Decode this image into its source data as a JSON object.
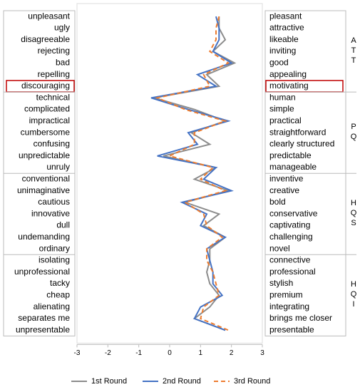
{
  "chart_data": {
    "type": "profile",
    "groups": [
      {
        "label": "ATT",
        "items": [
          {
            "left": "unpleasant",
            "right": "pleasant"
          },
          {
            "left": "ugly",
            "right": "attractive"
          },
          {
            "left": "disagreeable",
            "right": "likeable"
          },
          {
            "left": "rejecting",
            "right": "inviting"
          },
          {
            "left": "bad",
            "right": "good"
          },
          {
            "left": "repelling",
            "right": "appealing"
          },
          {
            "left": "discouraging",
            "right": "motivating",
            "highlight": true
          }
        ]
      },
      {
        "label": "PQ",
        "items": [
          {
            "left": "technical",
            "right": "human"
          },
          {
            "left": "complicated",
            "right": "simple"
          },
          {
            "left": "impractical",
            "right": "practical"
          },
          {
            "left": "cumbersome",
            "right": "straightforward"
          },
          {
            "left": "confusing",
            "right": "clearly structured"
          },
          {
            "left": "unpredictable",
            "right": "predictable"
          },
          {
            "left": "unruly",
            "right": "manageable"
          }
        ]
      },
      {
        "label": "HQS",
        "items": [
          {
            "left": "conventional",
            "right": "inventive"
          },
          {
            "left": "unimaginative",
            "right": "creative"
          },
          {
            "left": "cautious",
            "right": "bold"
          },
          {
            "left": "innovative",
            "right": "conservative"
          },
          {
            "left": "dull",
            "right": "captivating"
          },
          {
            "left": "undemanding",
            "right": "challenging"
          },
          {
            "left": "ordinary",
            "right": "novel"
          }
        ]
      },
      {
        "label": "HQI",
        "items": [
          {
            "left": "isolating",
            "right": "connective"
          },
          {
            "left": "unprofessional",
            "right": "professional"
          },
          {
            "left": "tacky",
            "right": "stylish"
          },
          {
            "left": "cheap",
            "right": "premium"
          },
          {
            "left": "alienating",
            "right": "integrating"
          },
          {
            "left": "separates me",
            "right": "brings me closer"
          },
          {
            "left": "unpresentable",
            "right": "presentable"
          }
        ]
      }
    ],
    "series": [
      {
        "name": "1st Round",
        "color": "#8c8c8c",
        "dash": false,
        "values": [
          1.6,
          1.6,
          1.8,
          1.4,
          2.1,
          1.2,
          1.6,
          -0.5,
          0.8,
          1.8,
          0.7,
          1.3,
          -0.2,
          1.5,
          0.8,
          1.9,
          0.5,
          1.6,
          1.1,
          1.8,
          1.3,
          1.3,
          1.2,
          1.3,
          1.6,
          1.3,
          0.8,
          1.8
        ]
      },
      {
        "name": "2nd Round",
        "color": "#4472c4",
        "dash": false,
        "values": [
          1.5,
          1.6,
          1.6,
          1.4,
          2.0,
          0.9,
          1.5,
          -0.6,
          0.6,
          1.9,
          0.6,
          0.9,
          -0.4,
          1.5,
          1.1,
          2.0,
          0.4,
          1.2,
          1.0,
          1.8,
          1.2,
          1.3,
          1.4,
          1.4,
          1.7,
          1.0,
          0.8,
          1.8
        ]
      },
      {
        "name": "3rd Round",
        "color": "#ed7d31",
        "dash": true,
        "values": [
          1.6,
          1.5,
          1.5,
          1.3,
          1.9,
          1.1,
          1.3,
          -0.4,
          0.5,
          1.8,
          0.8,
          0.8,
          0.0,
          1.4,
          1.0,
          1.8,
          0.5,
          1.1,
          1.2,
          1.7,
          1.2,
          1.2,
          1.4,
          1.5,
          1.6,
          1.1,
          1.0,
          1.9
        ]
      }
    ],
    "xlim": [
      -3,
      3
    ],
    "xticks": [
      -3,
      -2,
      -1,
      0,
      1,
      2,
      3
    ]
  }
}
